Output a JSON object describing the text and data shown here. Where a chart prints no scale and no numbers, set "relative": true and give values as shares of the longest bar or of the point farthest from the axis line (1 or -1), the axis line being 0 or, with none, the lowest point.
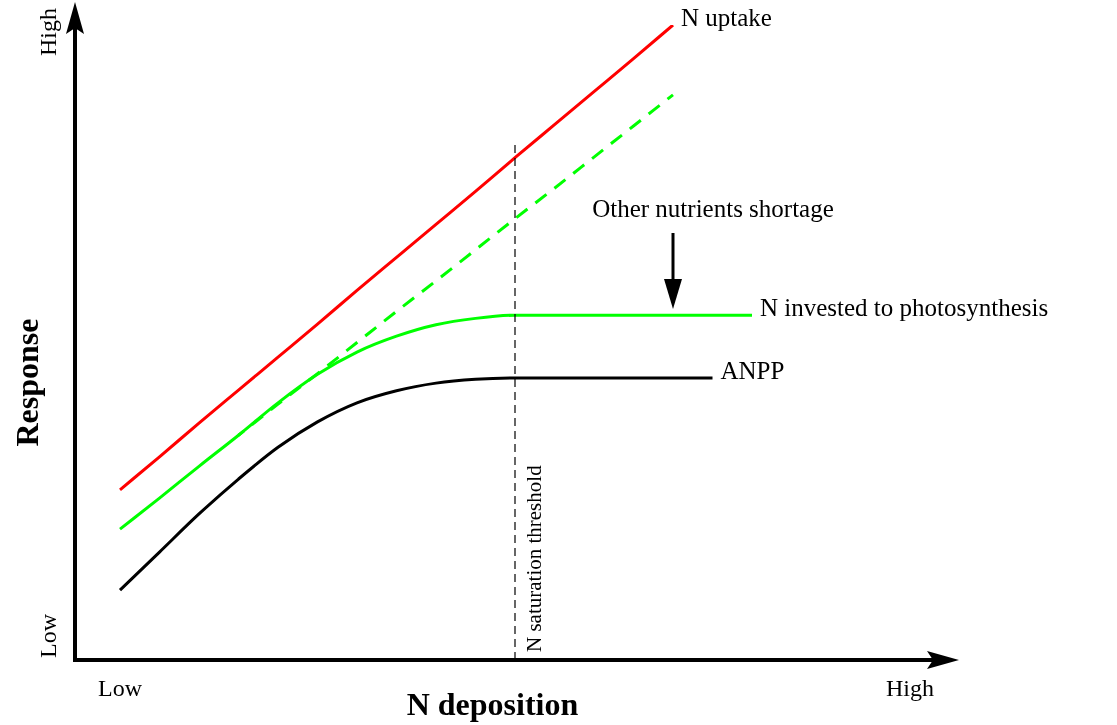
{
  "chart_data": {
    "type": "line",
    "relative": true,
    "xlabel": "N deposition",
    "ylabel": "Response",
    "marker": "none",
    "categories": [
      "Low",
      null,
      null,
      null,
      null,
      null,
      null,
      null,
      null,
      null,
      null,
      null,
      null,
      null,
      null,
      null,
      null,
      null,
      null,
      null,
      "High"
    ],
    "series": [
      {
        "name": "N uptake",
        "color": "#ff0000",
        "values": [
          0.268,
          0.32,
          0.373,
          0.425,
          0.477,
          0.529,
          0.582,
          0.634,
          0.686,
          0.738,
          0.791,
          0.843,
          0.895,
          0.947,
          1,
          null,
          null,
          null,
          null,
          null,
          null
        ]
      },
      {
        "color": "#00ff00",
        "line_style": "dashed",
        "values": [
          null,
          null,
          null,
          0.354,
          0.403,
          0.451,
          0.5,
          0.549,
          0.597,
          0.646,
          0.695,
          0.743,
          0.792,
          0.841,
          0.89,
          null,
          null,
          null,
          null,
          null,
          null
        ]
      },
      {
        "name": "N invested to photosynthesis",
        "color": "#00ff00",
        "values": [
          0.206,
          0.255,
          0.305,
          0.354,
          0.405,
          0.45,
          0.485,
          0.51,
          0.528,
          0.538,
          0.543,
          0.543,
          0.543,
          0.543,
          0.543,
          0.543,
          0.543,
          null,
          null,
          null,
          null
        ]
      },
      {
        "name": "ANPP",
        "color": "#000000",
        "values": [
          0.11,
          0.17,
          0.23,
          0.285,
          0.335,
          0.375,
          0.405,
          0.424,
          0.436,
          0.442,
          0.444,
          0.444,
          0.444,
          0.444,
          0.444,
          0.444,
          null,
          null,
          null,
          null,
          null
        ]
      }
    ],
    "annotations": [
      "Low",
      "High",
      "Other nutrients shortage",
      "N saturation threshold"
    ]
  }
}
